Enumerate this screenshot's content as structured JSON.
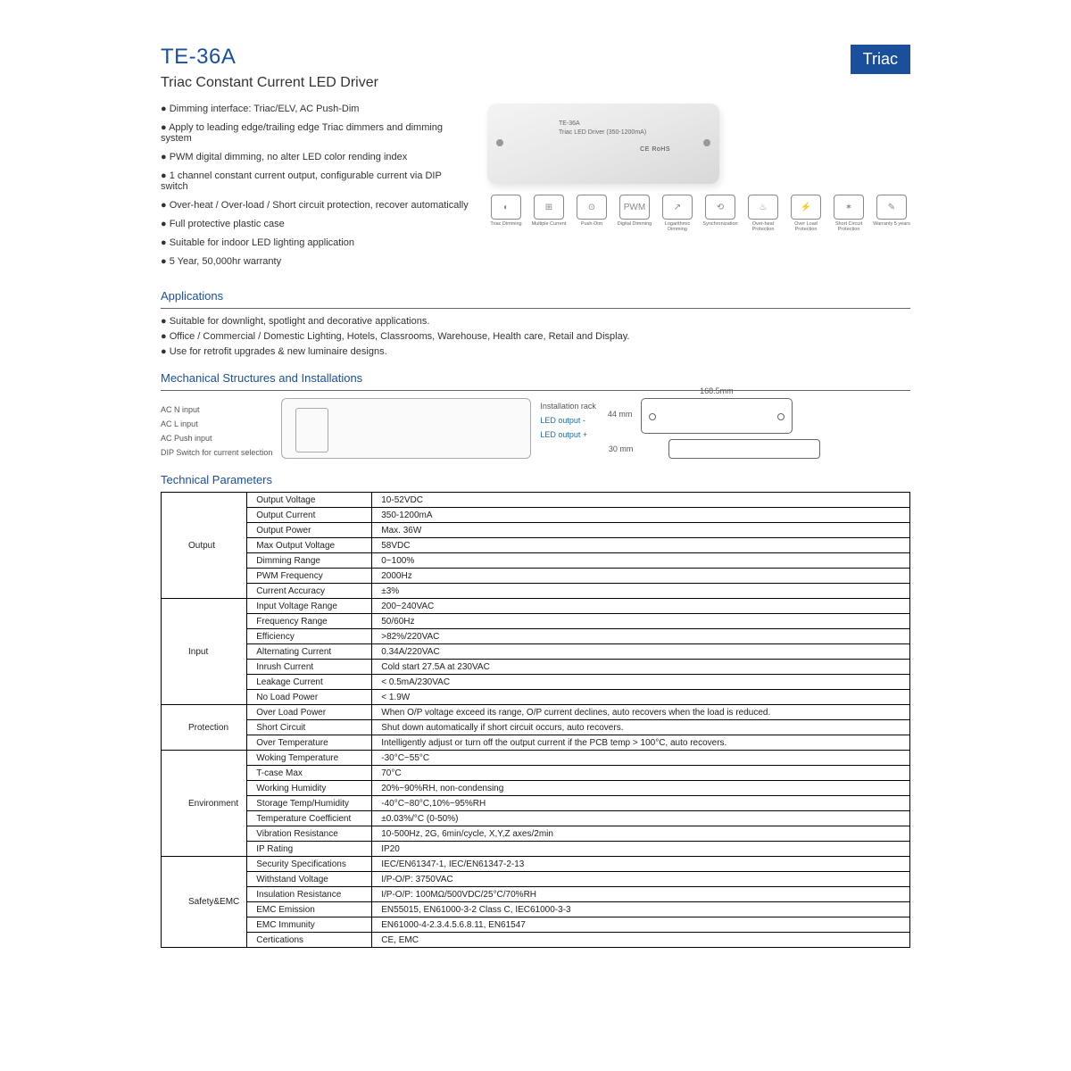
{
  "header": {
    "model": "TE-36A",
    "subtitle": "Triac Constant Current LED Driver",
    "badge": "Triac"
  },
  "features": [
    "Dimming interface: Triac/ELV, AC Push-Dim",
    "Apply to leading edge/trailing edge Triac dimmers and dimming system",
    "PWM digital dimming, no alter LED color rending index",
    "1 channel constant current output, configurable current via DIP switch",
    "Over-heat / Over-load / Short circuit protection, recover automatically",
    "Full protective plastic case",
    "Suitable for indoor LED lighting application",
    "5 Year, 50,000hr warranty"
  ],
  "product_label_line1": "TE-36A",
  "product_label_line2": "Triac LED Driver (350-1200mA)",
  "product_cert": "CE RoHS",
  "icons": [
    {
      "glyph": "◐",
      "label": "Triac Dimming"
    },
    {
      "glyph": "⊞",
      "label": "Multiple Current"
    },
    {
      "glyph": "⊙",
      "label": "Push-Dim"
    },
    {
      "glyph": "PWM",
      "label": "Digital Dimming"
    },
    {
      "glyph": "↗",
      "label": "Logarithmic Dimming"
    },
    {
      "glyph": "⟲",
      "label": "Synchronization"
    },
    {
      "glyph": "♨",
      "label": "Over-heat Protection"
    },
    {
      "glyph": "⚡",
      "label": "Over Load Protection"
    },
    {
      "glyph": "✶",
      "label": "Short Circuit Protection"
    },
    {
      "glyph": "✎",
      "label": "Warranty 5 years"
    }
  ],
  "sections": {
    "applications": "Applications",
    "mech": "Mechanical Structures and Installations",
    "tech": "Technical Parameters"
  },
  "applications": [
    "Suitable for downlight, spotlight and decorative applications.",
    "Office / Commercial / Domestic Lighting, Hotels, Classrooms, Warehouse, Health care, Retail and Display.",
    "Use for retrofit upgrades & new luminaire designs."
  ],
  "mech": {
    "in_labels": [
      "AC N input",
      "AC L input",
      "AC Push input",
      "DIP Switch for current selection"
    ],
    "out_labels": [
      "Installation rack",
      "LED output -",
      "LED output +"
    ],
    "dim_w": "168.5mm",
    "dim_h": "44 mm",
    "dim_d": "30 mm"
  },
  "table": {
    "groups": [
      {
        "name": "Output",
        "rows": [
          [
            "Output Voltage",
            "10-52VDC"
          ],
          [
            "Output Current",
            "350-1200mA"
          ],
          [
            "Output Power",
            "Max. 36W"
          ],
          [
            "Max Output Voltage",
            "58VDC"
          ],
          [
            "Dimming Range",
            "0~100%"
          ],
          [
            "PWM Frequency",
            "2000Hz"
          ],
          [
            "Current Accuracy",
            "±3%"
          ]
        ]
      },
      {
        "name": "Input",
        "rows": [
          [
            "Input Voltage Range",
            "200~240VAC"
          ],
          [
            "Frequency Range",
            "50/60Hz"
          ],
          [
            "Efficiency",
            ">82%/220VAC"
          ],
          [
            "Alternating Current",
            "0.34A/220VAC"
          ],
          [
            "Inrush Current",
            "Cold start 27.5A at 230VAC"
          ],
          [
            "Leakage Current",
            "< 0.5mA/230VAC"
          ],
          [
            "No Load Power",
            "< 1.9W"
          ]
        ]
      },
      {
        "name": "Protection",
        "rows": [
          [
            "Over Load Power",
            "When O/P voltage exceed its range, O/P current declines, auto recovers when the load is reduced."
          ],
          [
            "Short Circuit",
            "Shut down automatically if short circuit occurs, auto recovers."
          ],
          [
            "Over Temperature",
            "Intelligently adjust or turn off the output current if the PCB temp > 100°C, auto recovers."
          ]
        ]
      },
      {
        "name": "Environment",
        "rows": [
          [
            "Woking Temperature",
            "-30°C~55°C"
          ],
          [
            "T-case Max",
            "70°C"
          ],
          [
            "Working Humidity",
            "20%~90%RH, non-condensing"
          ],
          [
            "Storage Temp/Humidity",
            "-40°C~80°C,10%~95%RH"
          ],
          [
            "Temperature Coefficient",
            "±0.03%/°C (0-50%)"
          ],
          [
            "Vibration Resistance",
            "10-500Hz, 2G, 6min/cycle, X,Y,Z axes/2min"
          ],
          [
            "IP Rating",
            "IP20"
          ]
        ]
      },
      {
        "name": "Safety&EMC",
        "rows": [
          [
            "Security Specifications",
            "IEC/EN61347-1, IEC/EN61347-2-13"
          ],
          [
            "Withstand Voltage",
            "I/P-O/P: 3750VAC"
          ],
          [
            "Insulation Resistance",
            "I/P-O/P: 100MΩ/500VDC/25°C/70%RH"
          ],
          [
            "EMC Emission",
            "EN55015, EN61000-3-2 Class C, IEC61000-3-3"
          ],
          [
            "EMC Immunity",
            "EN61000-4-2.3.4.5.6.8.11, EN61547"
          ],
          [
            "Certications",
            "CE, EMC"
          ]
        ]
      }
    ]
  },
  "colors": {
    "brand": "#1a4f9c",
    "text": "#333333",
    "border": "#000000"
  }
}
